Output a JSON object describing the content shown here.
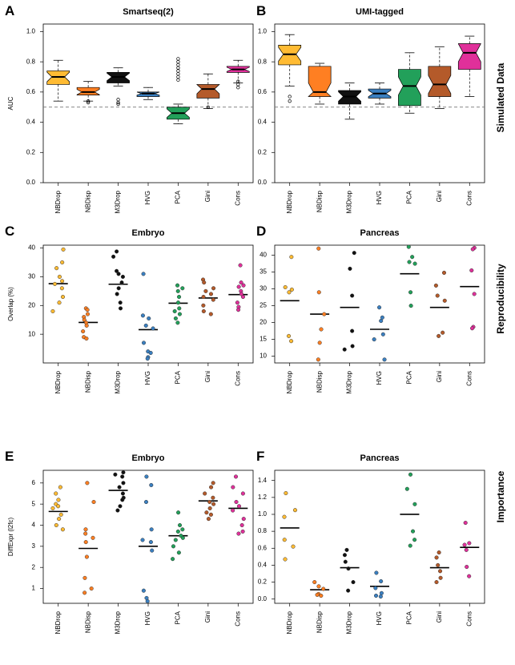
{
  "methods": [
    "NBDrop",
    "NBDisp",
    "M3Drop",
    "HVG",
    "PCA",
    "Gini",
    "Cons"
  ],
  "colors": [
    "#FFBB33",
    "#FF7F22",
    "#111111",
    "#3A7FC0",
    "#22A05A",
    "#B45A2A",
    "#E0309A"
  ],
  "side_labels": {
    "row1": "Simulated Data",
    "row2": "Reproducibility",
    "row3": "Importance"
  },
  "chart_data": [
    {
      "id": "A",
      "letter": "A",
      "type": "box",
      "title": "Smartseq(2)",
      "ylabel": "AUC",
      "ylim": [
        0,
        1.05
      ],
      "yticks": [
        0.0,
        0.2,
        0.4,
        0.6,
        0.8,
        1.0
      ],
      "ytick_labels": [
        "0.0",
        "0.2",
        "0.4",
        "0.6",
        "0.8",
        "1.0"
      ],
      "reference_line": 0.5,
      "boxes": [
        {
          "min": 0.54,
          "q1": 0.65,
          "med": 0.7,
          "q3": 0.74,
          "max": 0.81,
          "outliers": []
        },
        {
          "min": 0.54,
          "q1": 0.58,
          "med": 0.6,
          "q3": 0.63,
          "max": 0.67,
          "outliers": [
            0.53,
            0.54
          ]
        },
        {
          "min": 0.64,
          "q1": 0.66,
          "med": 0.7,
          "q3": 0.73,
          "max": 0.76,
          "outliers": [
            0.52,
            0.53,
            0.55
          ]
        },
        {
          "min": 0.55,
          "q1": 0.57,
          "med": 0.59,
          "q3": 0.6,
          "max": 0.63,
          "outliers": []
        },
        {
          "min": 0.39,
          "q1": 0.42,
          "med": 0.46,
          "q3": 0.5,
          "max": 0.52,
          "outliers": [
            0.68,
            0.7,
            0.72,
            0.74,
            0.76,
            0.78,
            0.8,
            0.82
          ]
        },
        {
          "min": 0.49,
          "q1": 0.56,
          "med": 0.62,
          "q3": 0.65,
          "max": 0.72,
          "outliers": [
            0.5
          ]
        },
        {
          "min": 0.66,
          "q1": 0.73,
          "med": 0.75,
          "q3": 0.77,
          "max": 0.81,
          "outliers": [
            0.63,
            0.65,
            0.67
          ]
        }
      ]
    },
    {
      "id": "B",
      "letter": "B",
      "type": "box",
      "title": "UMI-tagged",
      "ylabel": "",
      "ylim": [
        0,
        1.05
      ],
      "yticks": [
        0.0,
        0.2,
        0.4,
        0.6,
        0.8,
        1.0
      ],
      "ytick_labels": [
        "0.0",
        "0.2",
        "0.4",
        "0.6",
        "0.8",
        "1.0"
      ],
      "reference_line": 0.5,
      "boxes": [
        {
          "min": 0.64,
          "q1": 0.78,
          "med": 0.85,
          "q3": 0.91,
          "max": 0.98,
          "outliers": [
            0.54,
            0.57
          ]
        },
        {
          "min": 0.52,
          "q1": 0.57,
          "med": 0.6,
          "q3": 0.77,
          "max": 0.79,
          "outliers": []
        },
        {
          "min": 0.42,
          "q1": 0.52,
          "med": 0.57,
          "q3": 0.61,
          "max": 0.66,
          "outliers": []
        },
        {
          "min": 0.52,
          "q1": 0.56,
          "med": 0.59,
          "q3": 0.62,
          "max": 0.66,
          "outliers": []
        },
        {
          "min": 0.46,
          "q1": 0.51,
          "med": 0.64,
          "q3": 0.75,
          "max": 0.86,
          "outliers": []
        },
        {
          "min": 0.49,
          "q1": 0.57,
          "med": 0.65,
          "q3": 0.77,
          "max": 0.9,
          "outliers": []
        },
        {
          "min": 0.57,
          "q1": 0.75,
          "med": 0.86,
          "q3": 0.92,
          "max": 0.97,
          "outliers": []
        }
      ]
    },
    {
      "id": "C",
      "letter": "C",
      "type": "strip",
      "title": "Embryo",
      "ylabel": "Overlap (%)",
      "ylim": [
        0,
        41
      ],
      "yticks": [
        10,
        20,
        30,
        40
      ],
      "ytick_labels": [
        "10",
        "20",
        "30",
        "40"
      ],
      "means": [
        27.6,
        14.1,
        27.4,
        11.6,
        20.8,
        22.6,
        23.8
      ],
      "points": [
        [
          39.5,
          35,
          33,
          30,
          28.5,
          27.5,
          26,
          23,
          21,
          18
        ],
        [
          19,
          18.5,
          17,
          16,
          15,
          14,
          13,
          11,
          9,
          8.5
        ],
        [
          38.8,
          37,
          32,
          31,
          30,
          28,
          26,
          24,
          21,
          19
        ],
        [
          31,
          16.5,
          15.5,
          13,
          12,
          7,
          4,
          3.5,
          2,
          1.5
        ],
        [
          27,
          26,
          25,
          23,
          21,
          19,
          18,
          17,
          15.5,
          14
        ],
        [
          29,
          28,
          26,
          25,
          24,
          23,
          22,
          20,
          18,
          17
        ],
        [
          34,
          28,
          27,
          26.5,
          25,
          24,
          23,
          21,
          19.5,
          18.5
        ]
      ]
    },
    {
      "id": "D",
      "letter": "D",
      "type": "strip",
      "title": "Pancreas",
      "ylabel": "",
      "ylim": [
        8,
        43
      ],
      "yticks": [
        10,
        15,
        20,
        25,
        30,
        35,
        40
      ],
      "ytick_labels": [
        "10",
        "15",
        "20",
        "25",
        "30",
        "35",
        "40"
      ],
      "means": [
        26.5,
        22.5,
        24.5,
        18,
        34.5,
        24.5,
        30.7
      ],
      "points": [
        [
          39.5,
          30.5,
          29.8,
          29,
          16,
          14.5
        ],
        [
          42,
          29,
          22.5,
          18,
          14,
          9
        ],
        [
          40.7,
          36,
          28,
          17.5,
          13,
          12
        ],
        [
          24.5,
          21.5,
          20.5,
          16.5,
          15,
          9
        ],
        [
          42.5,
          39.5,
          38,
          37.5,
          29,
          25
        ],
        [
          34.8,
          31,
          28,
          26.5,
          17,
          16
        ],
        [
          42.2,
          41.8,
          35.5,
          28.5,
          18.7,
          18.3
        ]
      ]
    },
    {
      "id": "E",
      "letter": "E",
      "type": "strip",
      "title": "Embryo",
      "ylabel": "DiffExpr (l2fc)",
      "ylim": [
        0.3,
        6.6
      ],
      "yticks": [
        1,
        2,
        3,
        4,
        5,
        6
      ],
      "ytick_labels": [
        "1",
        "2",
        "3",
        "4",
        "5",
        "6"
      ],
      "means": [
        4.65,
        2.9,
        5.65,
        3.0,
        3.5,
        5.15,
        4.8
      ],
      "points": [
        [
          5.8,
          5.5,
          5.2,
          5.0,
          4.9,
          4.8,
          4.5,
          4.3,
          4.0,
          3.8
        ],
        [
          6.0,
          5.1,
          3.8,
          3.6,
          3.4,
          3.2,
          2.5,
          1.5,
          1.0,
          0.8
        ],
        [
          6.5,
          6.4,
          6.3,
          6.0,
          5.8,
          5.5,
          5.3,
          5.2,
          4.9,
          4.7
        ],
        [
          6.3,
          5.9,
          5.1,
          3.8,
          3.3,
          3.2,
          2.8,
          0.9,
          0.55,
          0.4
        ],
        [
          4.6,
          4.0,
          3.8,
          3.7,
          3.5,
          3.4,
          3.3,
          3.0,
          2.7,
          2.4
        ],
        [
          6.0,
          5.8,
          5.5,
          5.3,
          5.1,
          5.0,
          4.8,
          4.6,
          4.5,
          4.3
        ],
        [
          6.3,
          5.8,
          5.5,
          5.1,
          4.9,
          4.7,
          4.3,
          4.0,
          3.7,
          3.6
        ]
      ]
    },
    {
      "id": "F",
      "letter": "F",
      "type": "strip",
      "title": "Pancreas",
      "ylabel": "",
      "ylim": [
        -0.05,
        1.52
      ],
      "yticks": [
        0.0,
        0.2,
        0.4,
        0.6,
        0.8,
        1.0,
        1.2,
        1.4
      ],
      "ytick_labels": [
        "0.0",
        "0.2",
        "0.4",
        "0.6",
        "0.8",
        "1.0",
        "1.2",
        "1.4"
      ],
      "means": [
        0.84,
        0.11,
        0.37,
        0.15,
        1.0,
        0.37,
        0.61
      ],
      "points": [
        [
          1.25,
          1.05,
          0.97,
          0.7,
          0.62,
          0.47
        ],
        [
          0.2,
          0.15,
          0.12,
          0.06,
          0.05,
          0.04
        ],
        [
          0.58,
          0.52,
          0.44,
          0.36,
          0.2,
          0.1
        ],
        [
          0.31,
          0.21,
          0.13,
          0.07,
          0.04,
          0.03
        ],
        [
          1.47,
          1.3,
          1.12,
          0.8,
          0.7,
          0.63
        ],
        [
          0.55,
          0.49,
          0.4,
          0.33,
          0.25,
          0.2
        ],
        [
          0.9,
          0.66,
          0.64,
          0.58,
          0.38,
          0.27
        ]
      ]
    }
  ]
}
